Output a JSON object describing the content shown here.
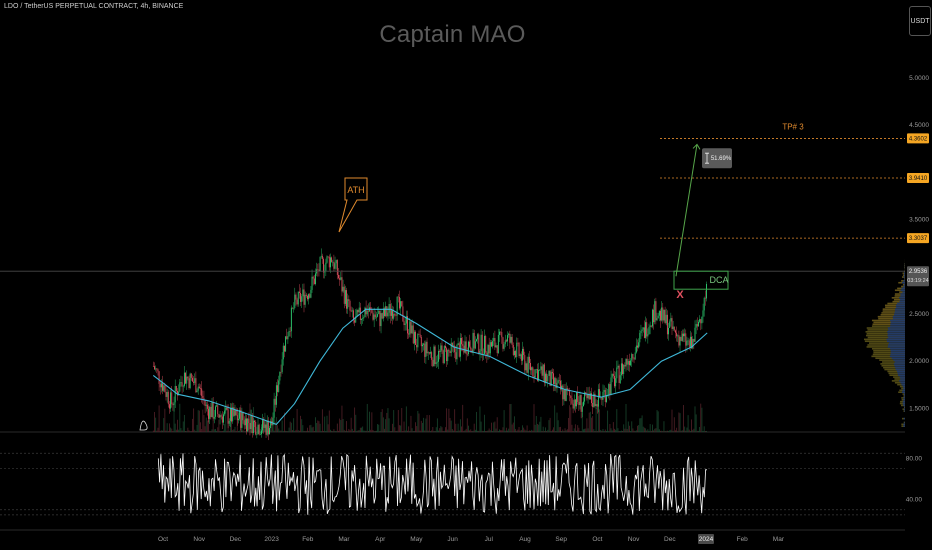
{
  "header": {
    "symbol": "LDO / TetherUS PERPETUAL CONTRACT, 4h, BINANCE",
    "watermark": "Captain MAO",
    "currency": "USDT"
  },
  "colors": {
    "background": "#000000",
    "moving_average": "#3fb8d8",
    "candle_up": "#2ecc71",
    "candle_down": "#e0505f",
    "level_line": "#e08a2e",
    "price_tag": "#f5a623",
    "ath_box": "#e08a2e",
    "dca_box": "#3fa34d",
    "arrow": "#57a64a",
    "stop_marker": "#e0505f",
    "oscillator": "#ffffff"
  },
  "annotations": {
    "ath": "ATH",
    "dca": "DCA",
    "tp": "TP# 3",
    "stop": "X",
    "measure": "51.69%"
  },
  "chart_data": [
    {
      "type": "line",
      "title": "",
      "x_axis_labels": [
        "Oct",
        "Nov",
        "Dec",
        "2023",
        "Feb",
        "Mar",
        "Apr",
        "May",
        "Jun",
        "Jul",
        "Aug",
        "Sep",
        "Oct",
        "Nov",
        "Dec",
        "2024",
        "Feb",
        "Mar"
      ],
      "y_ticks": [
        "5.0000",
        "4.5000",
        "3.5000",
        "2.5000",
        "2.0000",
        "1.5000"
      ],
      "y_range": [
        1.25,
        5.35
      ],
      "price_tags": [
        {
          "label": "4.3602",
          "value": 4.3602
        },
        {
          "label": "3.9410",
          "value": 3.941
        },
        {
          "label": "3.3037",
          "value": 3.3037
        },
        {
          "label": "2.9536",
          "value": 2.9536
        }
      ],
      "countdown": "03:19:24",
      "series": [
        {
          "kind": "price",
          "x": [
            "2022-09-25",
            "2022-10-03",
            "2022-10-10",
            "2022-10-20",
            "2022-11-01",
            "2022-11-08",
            "2022-11-15",
            "2022-11-25",
            "2022-12-05",
            "2022-12-15",
            "2022-12-25",
            "2023-01-01",
            "2023-01-10",
            "2023-01-20",
            "2023-02-01",
            "2023-02-10",
            "2023-02-20",
            "2023-02-28",
            "2023-03-10",
            "2023-03-20",
            "2023-04-01",
            "2023-04-15",
            "2023-05-01",
            "2023-05-15",
            "2023-06-01",
            "2023-06-15",
            "2023-07-01",
            "2023-07-15",
            "2023-08-01",
            "2023-08-15",
            "2023-09-01",
            "2023-09-15",
            "2023-10-01",
            "2023-10-15",
            "2023-11-01",
            "2023-11-15",
            "2023-12-01",
            "2023-12-15",
            "2023-12-28"
          ],
          "values": [
            1.95,
            1.75,
            1.55,
            1.85,
            1.75,
            1.5,
            1.45,
            1.42,
            1.4,
            1.35,
            1.3,
            1.32,
            2.1,
            2.6,
            2.75,
            3.0,
            3.1,
            2.8,
            2.4,
            2.55,
            2.45,
            2.6,
            2.2,
            2.05,
            2.1,
            2.2,
            2.15,
            2.25,
            1.95,
            1.85,
            1.65,
            1.55,
            1.62,
            1.85,
            2.2,
            2.55,
            2.3,
            2.15,
            2.75
          ]
        },
        {
          "kind": "moving-average",
          "x": [
            "2022-09-25",
            "2022-10-15",
            "2022-11-10",
            "2022-12-10",
            "2023-01-05",
            "2023-01-20",
            "2023-02-10",
            "2023-03-01",
            "2023-03-20",
            "2023-04-10",
            "2023-05-01",
            "2023-06-01",
            "2023-07-01",
            "2023-08-01",
            "2023-09-01",
            "2023-10-01",
            "2023-10-25",
            "2023-11-20",
            "2023-12-15",
            "2023-12-28"
          ],
          "values": [
            1.85,
            1.65,
            1.58,
            1.45,
            1.33,
            1.55,
            2.0,
            2.35,
            2.55,
            2.55,
            2.4,
            2.15,
            2.05,
            1.85,
            1.7,
            1.62,
            1.7,
            2.0,
            2.15,
            2.3
          ]
        }
      ],
      "levels": [
        4.3602,
        3.941,
        3.3037,
        2.9536
      ],
      "annotation_points": {
        "ath": 3.2,
        "dca": 2.9536,
        "measure_from": 2.9,
        "measure_to": 4.3602,
        "stop": 2.7
      }
    },
    {
      "type": "line",
      "title": "",
      "y_ticks": [
        "80.00",
        "40.00"
      ],
      "y_range": [
        20,
        95
      ],
      "oscillator_range": [
        25,
        85
      ],
      "guide_levels": [
        85,
        70,
        30,
        25
      ]
    }
  ]
}
